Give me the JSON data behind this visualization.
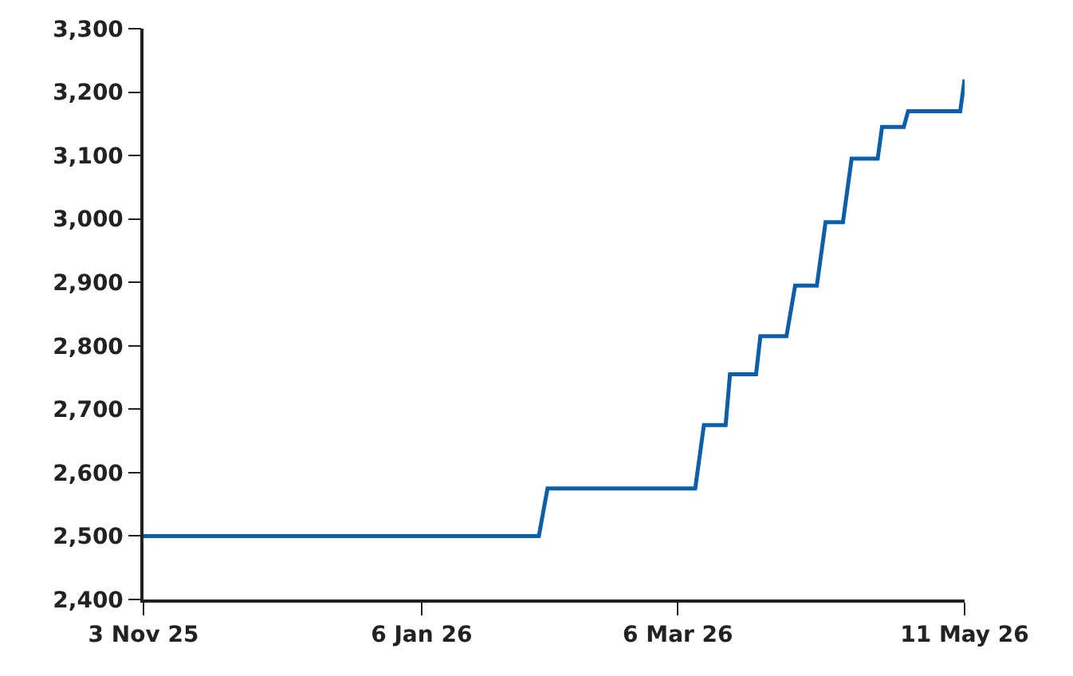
{
  "chart_data": {
    "type": "line",
    "x": [
      "2025-11-03",
      "2026-02-02",
      "2026-02-04",
      "2026-03-10",
      "2026-03-12",
      "2026-03-17",
      "2026-03-18",
      "2026-03-24",
      "2026-03-25",
      "2026-03-31",
      "2026-04-02",
      "2026-04-07",
      "2026-04-09",
      "2026-04-13",
      "2026-04-15",
      "2026-04-21",
      "2026-04-22",
      "2026-04-27",
      "2026-04-28",
      "2026-05-10",
      "2026-05-11"
    ],
    "series": [
      {
        "color": "#0b5fa8",
        "values": [
          2500,
          2500,
          2575,
          2575,
          2675,
          2675,
          2755,
          2755,
          2815,
          2815,
          2895,
          2895,
          2995,
          2995,
          3095,
          3095,
          3145,
          3145,
          3170,
          3170,
          3220
        ]
      }
    ],
    "xlim": [
      "2025-11-03",
      "2026-05-11"
    ],
    "xticks": [
      {
        "value": "2025-11-03",
        "label": "3 Nov 25"
      },
      {
        "value": "2026-01-06",
        "label": "6 Jan 26"
      },
      {
        "value": "2026-03-06",
        "label": "6 Mar 26"
      },
      {
        "value": "2026-05-11",
        "label": "11 May 26"
      }
    ],
    "ylim": [
      2400,
      3300
    ],
    "yticks": [
      {
        "value": 2400,
        "label": "2,400"
      },
      {
        "value": 2500,
        "label": "2,500"
      },
      {
        "value": 2600,
        "label": "2,600"
      },
      {
        "value": 2700,
        "label": "2,700"
      },
      {
        "value": 2800,
        "label": "2,800"
      },
      {
        "value": 2900,
        "label": "2,900"
      },
      {
        "value": 3000,
        "label": "3,000"
      },
      {
        "value": 3100,
        "label": "3,100"
      },
      {
        "value": 3200,
        "label": "3,200"
      },
      {
        "value": 3300,
        "label": "3,300"
      }
    ],
    "marker": "none",
    "line_style": "solid"
  }
}
